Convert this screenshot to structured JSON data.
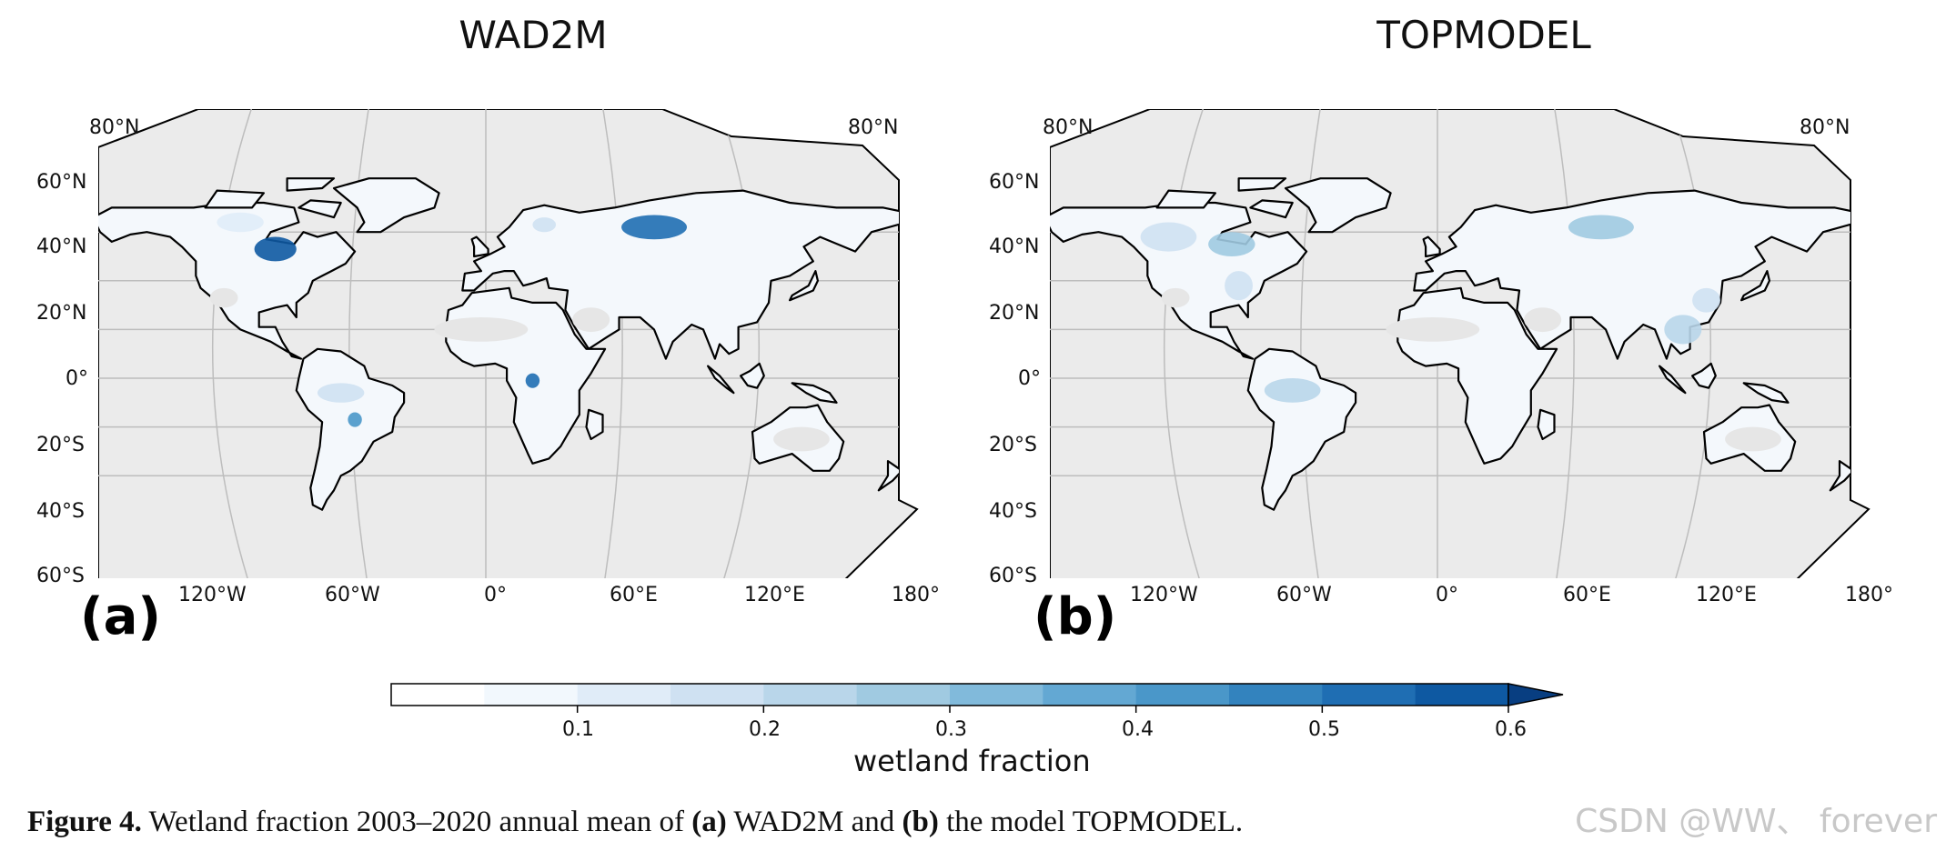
{
  "panels": [
    {
      "title": "WAD2M",
      "letter": "(a)"
    },
    {
      "title": "TOPMODEL",
      "letter": "(b)"
    }
  ],
  "lat_labels": [
    "80°N",
    "60°N",
    "40°N",
    "20°N",
    "0°",
    "20°S",
    "40°S",
    "60°S"
  ],
  "lat_label_right": "80°N",
  "lon_labels": [
    "120°W",
    "60°W",
    "0°",
    "60°E",
    "120°E",
    "180°"
  ],
  "colorbar": {
    "label": "wetland fraction",
    "ticks": [
      "0.1",
      "0.2",
      "0.3",
      "0.4",
      "0.5",
      "0.6"
    ],
    "colors": [
      "#ffffff",
      "#f2f8fd",
      "#e0ecf8",
      "#cfe1f2",
      "#b9d6ea",
      "#a0cae1",
      "#81badb",
      "#63a8d3",
      "#4a97c9",
      "#3383be",
      "#1f6eb3",
      "#0e59a2",
      "#083e81"
    ]
  },
  "caption": {
    "prefix": "Figure 4.",
    "t1": " Wetland fraction 2003–2020 annual mean of ",
    "a": "(a)",
    "t2": " WAD2M and ",
    "b": "(b)",
    "t3": " the model TOPMODEL."
  },
  "watermark": "CSDN @WW、 forever",
  "colors": {
    "ocean_bg": "#ebebeb",
    "land": "#f4f8fc",
    "coast": "#000000",
    "grid": "#bdbdbd"
  }
}
